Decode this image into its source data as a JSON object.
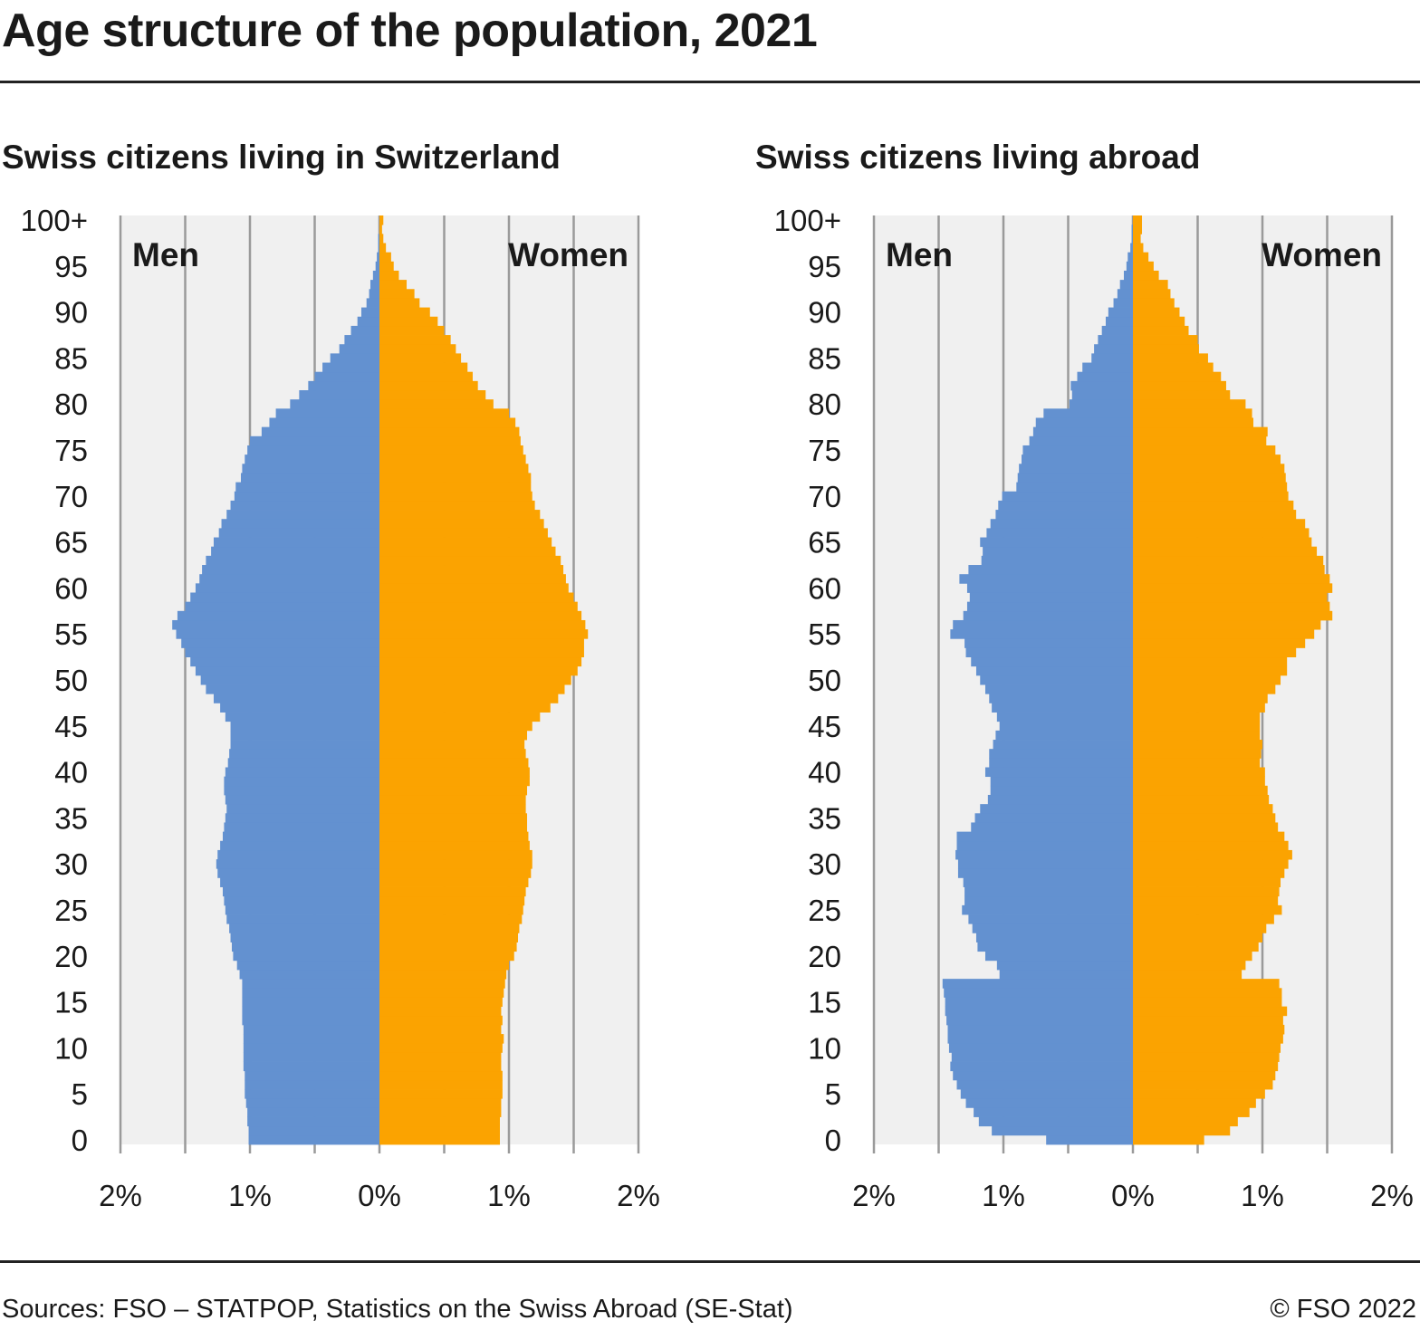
{
  "title": "Age structure of the population, 2021",
  "source": "Sources: FSO – STATPOP, Statistics on the Swiss Abroad (SE-Stat)",
  "copyright": "© FSO 2022",
  "colors": {
    "men": "#6391d0",
    "women": "#fba301",
    "plot_bg": "#f0f0f0",
    "grid": "#9a9a9a"
  },
  "chart_data": [
    {
      "type": "bar",
      "orientation": "population-pyramid",
      "title": "Swiss citizens living in Switzerland",
      "left_label": "Men",
      "right_label": "Women",
      "y_ticks": [
        "0",
        "5",
        "10",
        "15",
        "20",
        "25",
        "30",
        "35",
        "40",
        "45",
        "50",
        "55",
        "60",
        "65",
        "70",
        "75",
        "80",
        "85",
        "90",
        "95",
        "100+"
      ],
      "x_ticks": [
        "2%",
        "1%",
        "0%",
        "1%",
        "2%"
      ],
      "xlim": [
        0,
        2
      ],
      "grid": true,
      "series": [
        {
          "name": "Men",
          "values": [
            1.01,
            1.01,
            1.02,
            1.02,
            1.03,
            1.04,
            1.04,
            1.04,
            1.05,
            1.05,
            1.05,
            1.05,
            1.05,
            1.06,
            1.06,
            1.06,
            1.06,
            1.06,
            1.08,
            1.1,
            1.13,
            1.14,
            1.15,
            1.16,
            1.18,
            1.19,
            1.2,
            1.21,
            1.23,
            1.25,
            1.26,
            1.25,
            1.23,
            1.21,
            1.2,
            1.19,
            1.18,
            1.19,
            1.2,
            1.2,
            1.19,
            1.17,
            1.16,
            1.15,
            1.15,
            1.15,
            1.19,
            1.23,
            1.28,
            1.34,
            1.38,
            1.42,
            1.46,
            1.5,
            1.53,
            1.57,
            1.6,
            1.56,
            1.5,
            1.46,
            1.42,
            1.39,
            1.37,
            1.34,
            1.3,
            1.28,
            1.24,
            1.22,
            1.18,
            1.15,
            1.12,
            1.11,
            1.07,
            1.06,
            1.04,
            1.02,
            1.0,
            0.91,
            0.85,
            0.8,
            0.69,
            0.62,
            0.55,
            0.5,
            0.44,
            0.38,
            0.31,
            0.27,
            0.22,
            0.17,
            0.14,
            0.1,
            0.08,
            0.07,
            0.05,
            0.03,
            0.02,
            0.01,
            0.01,
            0.0,
            0.0
          ]
        },
        {
          "name": "Women",
          "values": [
            0.93,
            0.93,
            0.93,
            0.94,
            0.94,
            0.95,
            0.95,
            0.95,
            0.94,
            0.94,
            0.95,
            0.96,
            0.94,
            0.95,
            0.94,
            0.95,
            0.96,
            0.97,
            0.98,
            1.0,
            1.04,
            1.06,
            1.07,
            1.08,
            1.1,
            1.11,
            1.12,
            1.13,
            1.15,
            1.17,
            1.18,
            1.18,
            1.16,
            1.15,
            1.14,
            1.14,
            1.13,
            1.13,
            1.14,
            1.16,
            1.16,
            1.15,
            1.13,
            1.12,
            1.14,
            1.18,
            1.24,
            1.32,
            1.38,
            1.43,
            1.48,
            1.53,
            1.56,
            1.58,
            1.58,
            1.61,
            1.59,
            1.56,
            1.53,
            1.5,
            1.46,
            1.44,
            1.42,
            1.4,
            1.36,
            1.33,
            1.3,
            1.27,
            1.24,
            1.2,
            1.18,
            1.17,
            1.17,
            1.15,
            1.13,
            1.11,
            1.09,
            1.08,
            1.05,
            1.0,
            0.88,
            0.82,
            0.76,
            0.72,
            0.68,
            0.63,
            0.59,
            0.55,
            0.5,
            0.45,
            0.39,
            0.31,
            0.27,
            0.21,
            0.15,
            0.11,
            0.09,
            0.05,
            0.03,
            0.02,
            0.03
          ]
        }
      ]
    },
    {
      "type": "bar",
      "orientation": "population-pyramid",
      "title": "Swiss citizens living abroad",
      "left_label": "Men",
      "right_label": "Women",
      "y_ticks": [
        "0",
        "5",
        "10",
        "15",
        "20",
        "25",
        "30",
        "35",
        "40",
        "45",
        "50",
        "55",
        "60",
        "65",
        "70",
        "75",
        "80",
        "85",
        "90",
        "95",
        "100+"
      ],
      "x_ticks": [
        "2%",
        "1%",
        "0%",
        "1%",
        "2%"
      ],
      "xlim": [
        0,
        2
      ],
      "grid": true,
      "series": [
        {
          "name": "Men",
          "values": [
            0.67,
            1.09,
            1.19,
            1.23,
            1.29,
            1.33,
            1.36,
            1.39,
            1.41,
            1.4,
            1.42,
            1.43,
            1.43,
            1.44,
            1.45,
            1.45,
            1.46,
            1.47,
            1.03,
            1.05,
            1.14,
            1.2,
            1.21,
            1.24,
            1.27,
            1.32,
            1.3,
            1.3,
            1.31,
            1.35,
            1.35,
            1.37,
            1.36,
            1.36,
            1.25,
            1.22,
            1.18,
            1.12,
            1.1,
            1.1,
            1.14,
            1.11,
            1.11,
            1.08,
            1.06,
            1.03,
            1.05,
            1.09,
            1.11,
            1.14,
            1.18,
            1.21,
            1.25,
            1.29,
            1.3,
            1.41,
            1.39,
            1.31,
            1.28,
            1.26,
            1.28,
            1.34,
            1.27,
            1.17,
            1.16,
            1.18,
            1.13,
            1.1,
            1.06,
            1.04,
            1.01,
            0.9,
            0.89,
            0.88,
            0.86,
            0.85,
            0.8,
            0.77,
            0.75,
            0.69,
            0.49,
            0.47,
            0.48,
            0.43,
            0.39,
            0.32,
            0.3,
            0.27,
            0.24,
            0.21,
            0.19,
            0.15,
            0.12,
            0.1,
            0.07,
            0.05,
            0.04,
            0.02,
            0.01,
            0.01,
            0.0
          ]
        },
        {
          "name": "Women",
          "values": [
            0.55,
            0.75,
            0.81,
            0.9,
            0.95,
            1.02,
            1.08,
            1.1,
            1.12,
            1.13,
            1.14,
            1.16,
            1.17,
            1.16,
            1.19,
            1.15,
            1.15,
            1.13,
            0.84,
            0.87,
            0.92,
            0.97,
            1.0,
            1.03,
            1.09,
            1.15,
            1.12,
            1.13,
            1.14,
            1.17,
            1.2,
            1.23,
            1.2,
            1.17,
            1.12,
            1.1,
            1.08,
            1.05,
            1.04,
            1.02,
            1.02,
            0.98,
            0.99,
            1.0,
            0.98,
            0.98,
            0.98,
            1.02,
            1.04,
            1.1,
            1.14,
            1.19,
            1.19,
            1.26,
            1.33,
            1.4,
            1.45,
            1.54,
            1.52,
            1.5,
            1.54,
            1.52,
            1.48,
            1.47,
            1.42,
            1.38,
            1.36,
            1.33,
            1.26,
            1.24,
            1.2,
            1.19,
            1.18,
            1.17,
            1.14,
            1.1,
            1.03,
            1.04,
            0.93,
            0.92,
            0.87,
            0.75,
            0.72,
            0.68,
            0.62,
            0.58,
            0.51,
            0.5,
            0.43,
            0.4,
            0.36,
            0.32,
            0.29,
            0.27,
            0.2,
            0.16,
            0.12,
            0.08,
            0.06,
            0.07,
            0.07
          ]
        }
      ]
    }
  ]
}
